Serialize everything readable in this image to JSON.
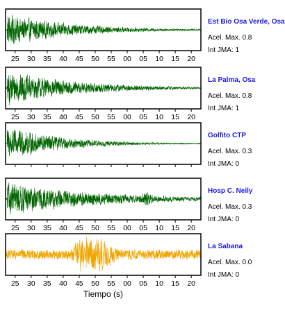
{
  "chart_data": {
    "type": "line",
    "xlabel": "Tiempo (s)",
    "x_tick_labels": [
      "25",
      "30",
      "35",
      "40",
      "45",
      "50",
      "55",
      "00",
      "05",
      "10",
      "15",
      "20"
    ],
    "colors": {
      "strong": "#006400",
      "weak": "#f0a500",
      "station_name": "#1a1adc",
      "frame": "#000000"
    },
    "grid": false,
    "series": [
      {
        "name": "Est Bio Osa Verde, Osa",
        "accel_label": "Acel. Max. 0.8",
        "jma_label": "Int JMA: 1",
        "color": "#006400",
        "show_ticks": true,
        "envelope": {
          "onset": 22.5,
          "peak": 0.95,
          "decay": 0.05,
          "floor": 0.035,
          "bursts": []
        }
      },
      {
        "name": "La Palma, Osa",
        "accel_label": "Acel. Max. 0.8",
        "jma_label": "Int JMA: 1",
        "color": "#006400",
        "show_ticks": true,
        "envelope": {
          "onset": 22.5,
          "peak": 1.0,
          "decay": 0.045,
          "floor": 0.06,
          "bursts": []
        }
      },
      {
        "name": "Golfito CTP",
        "accel_label": "Acel. Max. 0.3",
        "jma_label": "Int JMA: 0",
        "color": "#006400",
        "show_ticks": false,
        "envelope": {
          "onset": 22.5,
          "peak": 1.0,
          "decay": 0.06,
          "floor": 0.03,
          "bursts": []
        }
      },
      {
        "name": "Hosp C. Neily",
        "accel_label": "Acel. Max. 0.3",
        "jma_label": "Int JMA: 0",
        "color": "#006400",
        "show_ticks": true,
        "envelope": {
          "onset": 22.5,
          "peak": 0.95,
          "decay": 0.035,
          "floor": 0.08,
          "bursts": [
            [
              66,
              0.35,
              1.2
            ]
          ]
        }
      },
      {
        "name": "La Sabana",
        "accel_label": "Acel. Max. 0.0",
        "jma_label": "Int JMA: 0",
        "color": "#f0a500",
        "show_ticks": true,
        "envelope": {
          "onset": 22.5,
          "peak": 0.3,
          "decay": 0.0,
          "floor": 0.3,
          "bursts": [
            [
              47,
              0.95,
              3
            ],
            [
              50,
              0.7,
              3
            ],
            [
              54,
              0.3,
              3
            ]
          ]
        }
      }
    ]
  }
}
